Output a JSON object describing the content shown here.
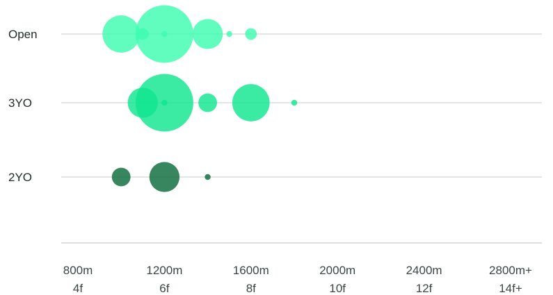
{
  "chart_data": {
    "type": "scatter",
    "rows": [
      "Open",
      "3YO",
      "2YO"
    ],
    "x_ticks": [
      {
        "value": 800,
        "line1": "800m",
        "line2": "4f"
      },
      {
        "value": 1200,
        "line1": "1200m",
        "line2": "6f"
      },
      {
        "value": 1600,
        "line1": "1600m",
        "line2": "8f"
      },
      {
        "value": 2000,
        "line1": "2000m",
        "line2": "10f"
      },
      {
        "value": 2400,
        "line1": "2400m",
        "line2": "12f"
      },
      {
        "value": 2800,
        "line1": "2800m+",
        "line2": "14f+"
      }
    ],
    "xlim": [
      800,
      2800
    ],
    "series": [
      {
        "row": "Open",
        "color": "#3dfdb0",
        "points": [
          {
            "x": 1000,
            "size": 720
          },
          {
            "x": 1100,
            "size": 70
          },
          {
            "x": 1200,
            "size": 1720
          },
          {
            "x": 1200,
            "size": 18
          },
          {
            "x": 1400,
            "size": 470
          },
          {
            "x": 1500,
            "size": 18
          },
          {
            "x": 1600,
            "size": 70
          }
        ]
      },
      {
        "row": "3YO",
        "color": "#10e58f",
        "points": [
          {
            "x": 1100,
            "size": 470
          },
          {
            "x": 1200,
            "size": 1720
          },
          {
            "x": 1200,
            "size": 18
          },
          {
            "x": 1400,
            "size": 180
          },
          {
            "x": 1600,
            "size": 720
          },
          {
            "x": 1800,
            "size": 18
          }
        ]
      },
      {
        "row": "2YO",
        "color": "#0c6b3c",
        "points": [
          {
            "x": 1000,
            "size": 180
          },
          {
            "x": 1200,
            "size": 470
          },
          {
            "x": 1400,
            "size": 18
          }
        ]
      }
    ]
  }
}
